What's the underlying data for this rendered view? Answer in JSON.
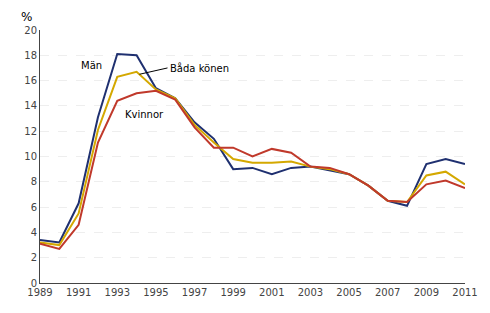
{
  "chart_data": {
    "type": "line",
    "ylabel": "%",
    "x": [
      1989,
      1990,
      1991,
      1992,
      1993,
      1994,
      1995,
      1996,
      1997,
      1998,
      1999,
      2000,
      2001,
      2002,
      2003,
      2004,
      2005,
      2006,
      2007,
      2008,
      2009,
      2010,
      2011
    ],
    "series": [
      {
        "name": "Män",
        "color": "#1f3070",
        "values": [
          3.4,
          3.2,
          6.3,
          13.1,
          18.1,
          18.0,
          15.4,
          14.6,
          12.7,
          11.4,
          9.0,
          9.1,
          8.6,
          9.1,
          9.2,
          8.9,
          8.6,
          7.7,
          6.5,
          6.1,
          9.4,
          9.8,
          9.4
        ]
      },
      {
        "name": "Båda könen",
        "color": "#d4a800",
        "values": [
          3.2,
          3.0,
          5.5,
          12.1,
          16.3,
          16.7,
          15.3,
          14.6,
          12.5,
          11.1,
          9.8,
          9.5,
          9.5,
          9.6,
          9.2,
          9.0,
          8.6,
          7.7,
          6.5,
          6.4,
          8.5,
          8.8,
          7.8
        ]
      },
      {
        "name": "Kvinnor",
        "color": "#c0392b",
        "values": [
          3.1,
          2.7,
          4.6,
          11.1,
          14.4,
          15.0,
          15.2,
          14.5,
          12.3,
          10.7,
          10.7,
          10.0,
          10.6,
          10.3,
          9.2,
          9.1,
          8.6,
          7.7,
          6.5,
          6.4,
          7.8,
          8.1,
          7.5
        ]
      }
    ],
    "annotations": [
      {
        "text": "Män",
        "x": 1991.0,
        "y": 17.2
      },
      {
        "text": "Kvinnor",
        "x": 1993.3,
        "y": 13.3
      },
      {
        "text": "Båda könen",
        "x": 1994.15,
        "y": 16.5,
        "text_x": 1995.6,
        "text_y": 17.0
      }
    ],
    "xlim": [
      1989,
      2011
    ],
    "xticks": [
      1989,
      1991,
      1993,
      1995,
      1997,
      1999,
      2001,
      2003,
      2005,
      2007,
      2009,
      2011
    ],
    "ylim": [
      0,
      20
    ],
    "yticks": [
      0,
      2,
      4,
      6,
      8,
      10,
      12,
      14,
      16,
      18,
      20
    ],
    "grid": true
  }
}
